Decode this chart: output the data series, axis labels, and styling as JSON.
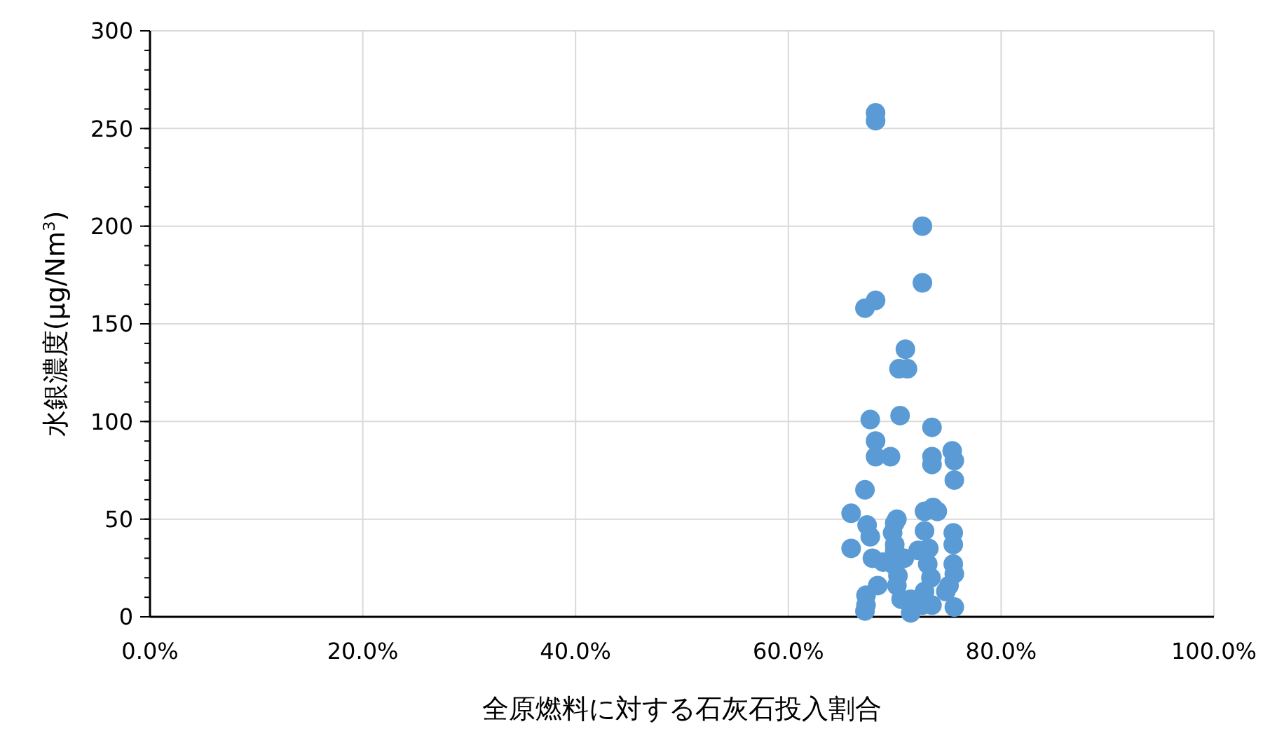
{
  "chart_data": {
    "type": "scatter",
    "xlabel": "全原燃料に対する石灰石投入割合",
    "ylabel": "水銀濃度(µg/Nm$^{3}$)",
    "xlim": [
      0,
      100
    ],
    "ylim": [
      0,
      300
    ],
    "xticks": [
      {
        "value": 0,
        "label": "0.0%"
      },
      {
        "value": 20,
        "label": "20.0%"
      },
      {
        "value": 40,
        "label": "40.0%"
      },
      {
        "value": 60,
        "label": "60.0%"
      },
      {
        "value": 80,
        "label": "80.0%"
      },
      {
        "value": 100,
        "label": "100.0%"
      }
    ],
    "yticks": [
      0,
      50,
      100,
      150,
      200,
      250,
      300
    ],
    "grid": true,
    "marker": "circle",
    "series": [
      {
        "color": "#5b9bd5",
        "x": [
          68.2,
          68.2,
          72.6,
          72.6,
          68.2,
          67.2,
          71.0,
          70.4,
          71.2,
          70.5,
          67.7,
          68.2,
          68.2,
          69.6,
          73.5,
          73.5,
          73.5,
          75.4,
          75.6,
          75.6,
          67.2,
          65.9,
          73.6,
          72.8,
          74.0,
          67.4,
          67.7,
          70.0,
          69.8,
          75.5,
          75.5,
          65.9,
          70.2,
          67.9,
          68.9,
          70.9,
          72.2,
          73.1,
          73.4,
          75.5,
          75.6,
          67.3,
          67.3,
          67.2,
          68.4,
          70.2,
          70.6,
          71.5,
          72.8,
          72.6,
          74.8,
          75.1,
          75.6,
          69.8,
          70.0,
          70.0,
          71.5,
          73.5,
          73.2,
          72.8,
          70.3
        ],
        "values": [
          258,
          254,
          200,
          171,
          162,
          158,
          137,
          127,
          127,
          103,
          101,
          90,
          82,
          82,
          97,
          82,
          78,
          85,
          80,
          70,
          65,
          53,
          56,
          54,
          54,
          47,
          41,
          48,
          43,
          43,
          37,
          35,
          50,
          30,
          28,
          30,
          34,
          27,
          20,
          27,
          22,
          11,
          6,
          3,
          16,
          16,
          9,
          2,
          13,
          6,
          13,
          16,
          5,
          27,
          37,
          34,
          9,
          6,
          35,
          44,
          21
        ]
      }
    ]
  }
}
